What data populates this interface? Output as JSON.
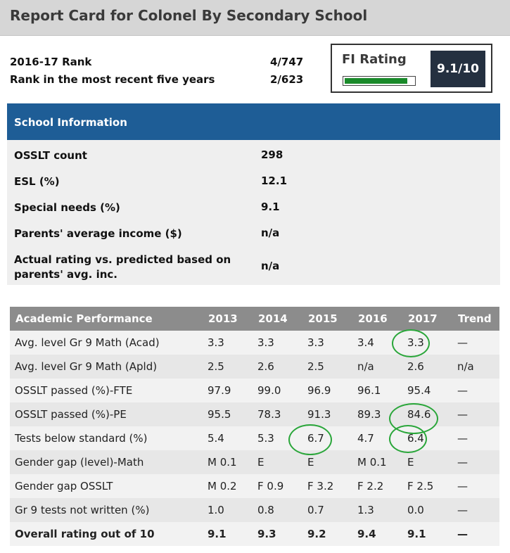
{
  "title": "Report Card for Colonel By Secondary School",
  "ranks": [
    {
      "label": "2016-17 Rank",
      "value": "4/747"
    },
    {
      "label": "Rank in the most recent five years",
      "value": "2/623"
    }
  ],
  "fi_rating": {
    "label": "FI Rating",
    "score": "9.1/10",
    "level": 0.91,
    "bar_color": "#1a8a2a",
    "score_bg": "#243040"
  },
  "school_info": {
    "header": "School Information",
    "rows": [
      {
        "label": "OSSLT count",
        "value": "298"
      },
      {
        "label": "ESL (%)",
        "value": "12.1"
      },
      {
        "label": "Special needs (%)",
        "value": "9.1"
      },
      {
        "label": "Parents' average income ($)",
        "value": "n/a"
      },
      {
        "label": "Actual rating vs. predicted based on parents' avg. inc.",
        "value": "n/a"
      }
    ]
  },
  "academic": {
    "headers": [
      "Academic Performance",
      "2013",
      "2014",
      "2015",
      "2016",
      "2017",
      "Trend"
    ],
    "rows": [
      [
        "Avg. level Gr 9 Math (Acad)",
        "3.3",
        "3.3",
        "3.3",
        "3.4",
        "3.3",
        "—"
      ],
      [
        "Avg. level Gr 9 Math (Apld)",
        "2.5",
        "2.6",
        "2.5",
        "n/a",
        "2.6",
        "n/a"
      ],
      [
        "OSSLT passed (%)-FTE",
        "97.9",
        "99.0",
        "96.9",
        "96.1",
        "95.4",
        "—"
      ],
      [
        "OSSLT passed (%)-PE",
        "95.5",
        "78.3",
        "91.3",
        "89.3",
        "84.6",
        "—"
      ],
      [
        "Tests below standard (%)",
        "5.4",
        "5.3",
        "6.7",
        "4.7",
        "6.4",
        "—"
      ],
      [
        "Gender gap (level)-Math",
        "M 0.1",
        "E",
        "E",
        "M 0.1",
        "E",
        "—"
      ],
      [
        "Gender gap OSSLT",
        "M 0.2",
        "F 0.9",
        "F 3.2",
        "F 2.2",
        "F 2.5",
        "—"
      ],
      [
        "Gr 9 tests not written (%)",
        "1.0",
        "0.8",
        "0.7",
        "1.3",
        "0.0",
        "—"
      ],
      [
        "Overall rating out of 10",
        "9.1",
        "9.3",
        "9.2",
        "9.4",
        "9.1",
        "—"
      ]
    ]
  },
  "annotation_color": "#2aa63a"
}
